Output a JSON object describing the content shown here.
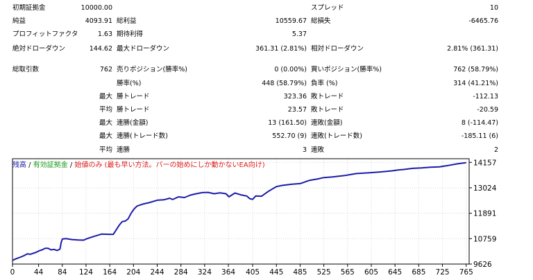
{
  "report": {
    "initial_deposit": {
      "label": "初期証拠金",
      "value": "10000.00"
    },
    "spread": {
      "label": "スプレッド",
      "value": "10"
    },
    "net_profit": {
      "label": "純益",
      "value": "4093.91"
    },
    "gross_profit": {
      "label": "総利益",
      "value": "10559.67"
    },
    "gross_loss": {
      "label": "総損失",
      "value": "-6465.76"
    },
    "profit_factor": {
      "label": "プロフィットファクタ",
      "value": "1.63"
    },
    "expected_payoff": {
      "label": "期待利得",
      "value": "5.37"
    },
    "abs_drawdown": {
      "label": "絶対ドローダウン",
      "value": "144.62"
    },
    "max_drawdown": {
      "label": "最大ドローダウン",
      "value": "361.31 (2.81%)"
    },
    "rel_drawdown": {
      "label": "相対ドローダウン",
      "value": "2.81% (361.31)"
    },
    "total_trades": {
      "label": "総取引数",
      "value": "762"
    },
    "short_positions": {
      "label": "売りポジション(勝率%)",
      "value": "0 (0.00%)"
    },
    "long_positions": {
      "label": "買いポジション(勝率%)",
      "value": "762 (58.79%)"
    },
    "win_rate": {
      "label": "勝率(%)",
      "value": "448 (58.79%)"
    },
    "loss_rate": {
      "label": "負率 (%)",
      "value": "314 (41.21%)"
    },
    "max_label": "最大",
    "avg_label": "平均",
    "largest_win": {
      "label": "勝トレード",
      "value": "323.36"
    },
    "largest_loss": {
      "label": "敗トレード",
      "value": "-112.13"
    },
    "avg_win": {
      "label": "勝トレード",
      "value": "23.57"
    },
    "avg_loss": {
      "label": "敗トレード",
      "value": "-20.59"
    },
    "max_consec_wins": {
      "label": "連勝(金額)",
      "value": "13 (161.50)"
    },
    "max_consec_losses": {
      "label": "連敗(金額)",
      "value": "8 (-114.47)"
    },
    "max_consec_profit": {
      "label": "連勝(トレード数)",
      "value": "552.70 (9)"
    },
    "max_consec_loss": {
      "label": "連敗(トレード数)",
      "value": "-185.11 (6)"
    },
    "avg_consec_wins": {
      "label": "連勝",
      "value": "3"
    },
    "avg_consec_losses": {
      "label": "連敗",
      "value": "2"
    }
  },
  "legend": {
    "balance": "残高",
    "sep1": " / ",
    "equity": "有効証拠金",
    "sep2": " / ",
    "note": "始値のみ (最も早い方法。バーの始めにしか動かないEA向け)"
  },
  "colors": {
    "balance": "#1a1aa8",
    "equity": "#1a9a1a",
    "note": "#e01818",
    "grid": "#d8d8d8",
    "axis": "#000000"
  },
  "chart_data": {
    "type": "line",
    "title": "",
    "xlabel": "",
    "ylabel": "",
    "x_ticks": [
      0,
      44,
      84,
      124,
      164,
      204,
      244,
      284,
      324,
      364,
      405,
      445,
      485,
      525,
      565,
      605,
      645,
      685,
      725,
      765
    ],
    "y_ticks": [
      9626,
      10759,
      11891,
      13024,
      14157
    ],
    "xlim": [
      0,
      770
    ],
    "ylim": [
      9626,
      14320
    ],
    "grid": true,
    "series": [
      {
        "color": "#1a1aa8",
        "x": [
          0,
          5,
          10,
          15,
          20,
          25,
          30,
          40,
          45,
          50,
          55,
          60,
          65,
          70,
          75,
          80,
          82,
          84,
          90,
          100,
          110,
          120,
          125,
          135,
          150,
          164,
          170,
          180,
          185,
          190,
          195,
          200,
          205,
          210,
          220,
          230,
          244,
          255,
          265,
          270,
          280,
          290,
          300,
          310,
          320,
          330,
          340,
          350,
          360,
          365,
          375,
          385,
          395,
          400,
          405,
          410,
          420,
          430,
          440,
          445,
          455,
          470,
          485,
          500,
          515,
          525,
          540,
          560,
          580,
          600,
          620,
          640,
          650,
          660,
          675,
          690,
          705,
          720,
          735,
          750,
          760,
          765
        ],
        "values": [
          9790,
          9850,
          9900,
          9950,
          10010,
          10080,
          10060,
          10150,
          10220,
          10260,
          10330,
          10330,
          10260,
          10280,
          10230,
          10290,
          10580,
          10740,
          10760,
          10720,
          10700,
          10690,
          10750,
          10840,
          10960,
          10950,
          10950,
          11360,
          11520,
          11540,
          11640,
          11890,
          12080,
          12210,
          12300,
          12360,
          12470,
          12490,
          12560,
          12500,
          12620,
          12590,
          12700,
          12760,
          12810,
          12820,
          12760,
          12800,
          12760,
          12620,
          12790,
          12710,
          12660,
          12540,
          12510,
          12660,
          12650,
          12840,
          13000,
          13080,
          13130,
          13180,
          13210,
          13350,
          13420,
          13480,
          13510,
          13570,
          13660,
          13690,
          13730,
          13780,
          13820,
          13840,
          13890,
          13910,
          13940,
          13960,
          14020,
          14090,
          14130,
          14140
        ]
      }
    ]
  }
}
